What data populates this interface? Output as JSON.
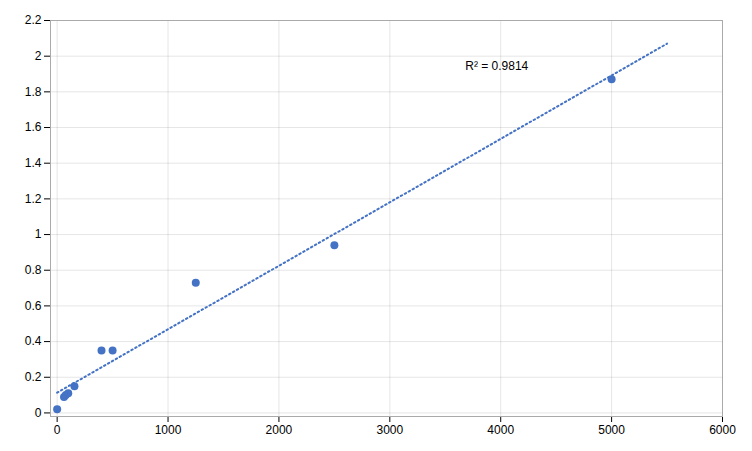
{
  "chart_data": {
    "type": "scatter",
    "series": [
      {
        "type": "scatter",
        "color": "#4472C4",
        "marker": "circle",
        "x": [
          0,
          62,
          78,
          100,
          156,
          400,
          500,
          1250,
          2500,
          5000
        ],
        "values": [
          0.02,
          0.09,
          0.1,
          0.11,
          0.15,
          0.35,
          0.35,
          0.73,
          0.94,
          1.87
        ]
      },
      {
        "type": "line",
        "color": "#4472C4",
        "line_style": "dotted",
        "x": [
          0,
          5500
        ],
        "values": [
          0.1136,
          2.0701
        ]
      }
    ],
    "annotations": [
      {
        "text": "R² = 0.9814",
        "x": 3680,
        "y": 1.97
      }
    ],
    "xlim": [
      -60,
      6000
    ],
    "ylim": [
      -0.02,
      2.2
    ],
    "xticks": [
      0,
      1000,
      2000,
      3000,
      4000,
      5000,
      6000
    ],
    "yticks": [
      0,
      0.2,
      0.4,
      0.6,
      0.8,
      1.0,
      1.2,
      1.4,
      1.6,
      1.8,
      2.0,
      2.2
    ],
    "grid": true
  }
}
